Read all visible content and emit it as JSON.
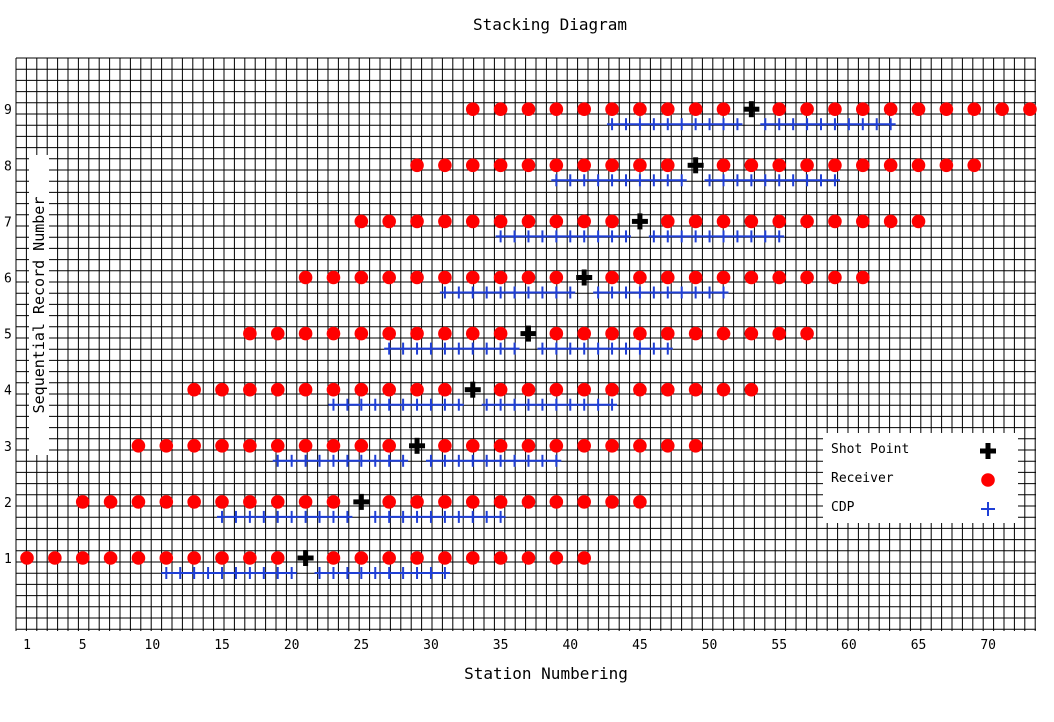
{
  "chart_data": {
    "type": "scatter",
    "title": "Stacking Diagram",
    "xlabel": "Station Numbering",
    "ylabel": "Sequential Record Number",
    "x_ticks": [
      1,
      5,
      10,
      15,
      20,
      25,
      30,
      35,
      40,
      45,
      50,
      55,
      60,
      65,
      70
    ],
    "y_ticks": [
      1,
      2,
      3,
      4,
      5,
      6,
      7,
      8,
      9
    ],
    "xlim": [
      1,
      73
    ],
    "ylim": [
      0,
      10
    ],
    "grid": true,
    "legend_position": "bottom-right",
    "colors": {
      "shot": "#000000",
      "receiver": "#ff0000",
      "cdp": "#1f3fd6",
      "grid": "#000000"
    },
    "records": [
      {
        "record": 1,
        "shot": 21,
        "receiver_first": 1,
        "receiver_last": 41,
        "receiver_step": 2
      },
      {
        "record": 2,
        "shot": 25,
        "receiver_first": 5,
        "receiver_last": 45,
        "receiver_step": 2
      },
      {
        "record": 3,
        "shot": 29,
        "receiver_first": 9,
        "receiver_last": 49,
        "receiver_step": 2
      },
      {
        "record": 4,
        "shot": 33,
        "receiver_first": 13,
        "receiver_last": 53,
        "receiver_step": 2
      },
      {
        "record": 5,
        "shot": 37,
        "receiver_first": 17,
        "receiver_last": 57,
        "receiver_step": 2
      },
      {
        "record": 6,
        "shot": 41,
        "receiver_first": 21,
        "receiver_last": 61,
        "receiver_step": 2
      },
      {
        "record": 7,
        "shot": 45,
        "receiver_first": 25,
        "receiver_last": 65,
        "receiver_step": 2
      },
      {
        "record": 8,
        "shot": 49,
        "receiver_first": 29,
        "receiver_last": 69,
        "receiver_step": 2
      },
      {
        "record": 9,
        "shot": 53,
        "receiver_first": 33,
        "receiver_last": 73,
        "receiver_step": 2
      }
    ],
    "legend": [
      {
        "label": "Shot Point",
        "marker": "shot"
      },
      {
        "label": "Receiver",
        "marker": "receiver"
      },
      {
        "label": "CDP",
        "marker": "cdp"
      }
    ]
  }
}
